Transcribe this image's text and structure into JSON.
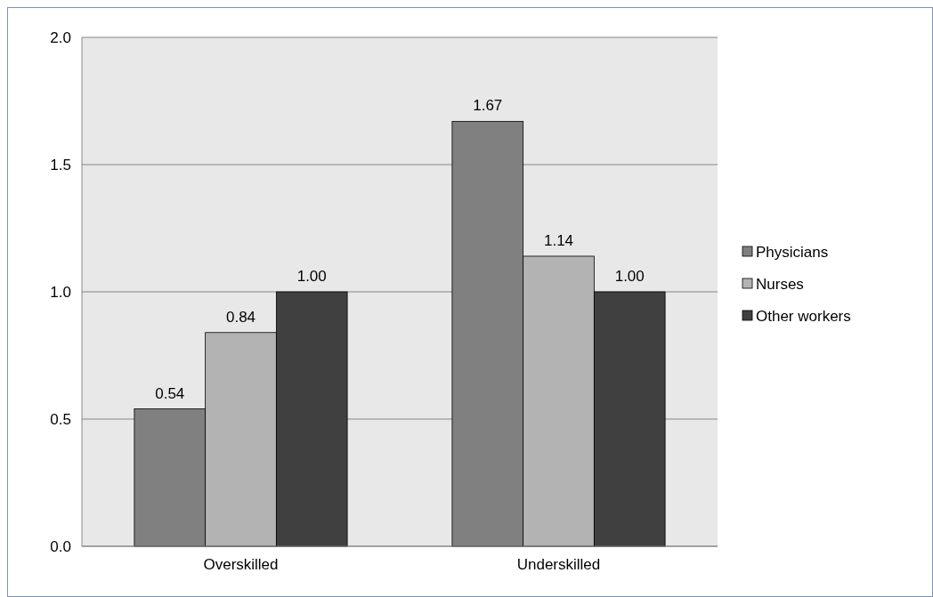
{
  "chart_data": {
    "type": "bar",
    "categories": [
      "Overskilled",
      "Underskilled"
    ],
    "series": [
      {
        "name": "Physicians",
        "color": "#808080",
        "values": [
          0.54,
          1.67
        ],
        "value_labels": [
          "0.54",
          "1.67"
        ]
      },
      {
        "name": "Nurses",
        "color": "#b3b3b3",
        "values": [
          0.84,
          1.14
        ],
        "value_labels": [
          "0.84",
          "1.14"
        ]
      },
      {
        "name": "Other workers",
        "color": "#404040",
        "values": [
          1.0,
          1.0
        ],
        "value_labels": [
          "1.00",
          "1.00"
        ]
      }
    ],
    "ylim": [
      0,
      2
    ],
    "yticks": [
      {
        "value": 0,
        "label": "0.0"
      },
      {
        "value": 0.5,
        "label": "0.5"
      },
      {
        "value": 1,
        "label": "1.0"
      },
      {
        "value": 1.5,
        "label": "1.5"
      },
      {
        "value": 2,
        "label": "2.0"
      }
    ],
    "grid": "y",
    "legend": "right"
  }
}
